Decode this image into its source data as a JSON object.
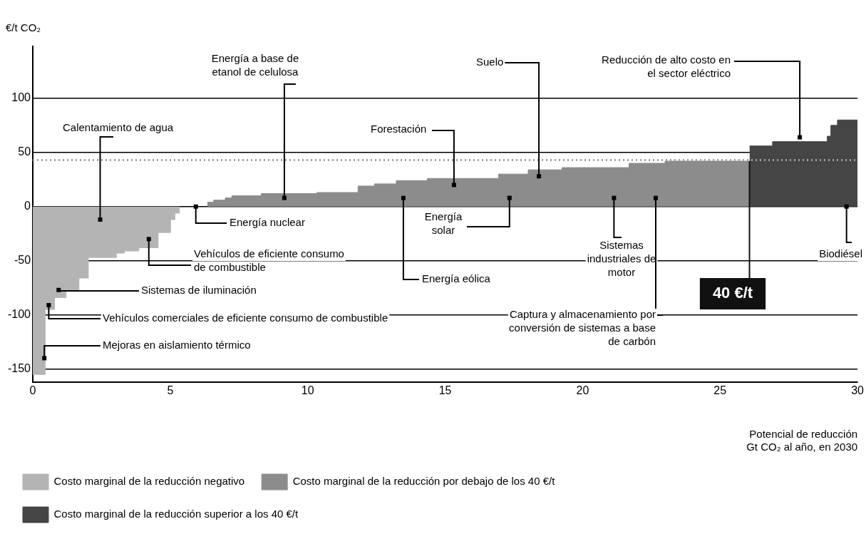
{
  "chart_data": {
    "type": "area",
    "ylabel": "€/t CO₂",
    "xlabel": "Potencial de reducción\nGt CO₂ al año, en 2030",
    "xlim": [
      0,
      30
    ],
    "xticks": [
      0,
      5,
      10,
      15,
      20,
      25,
      30
    ],
    "ylim": [
      -162,
      148
    ],
    "yticks": [
      -150,
      -100,
      -50,
      0,
      50,
      100
    ],
    "grid": "y",
    "legend": "bottom",
    "series": [
      {
        "name": "Costo marginal de la reducción negativo",
        "color": "#b4b4b4",
        "x": [
          0,
          0.45,
          0.45,
          0.79,
          0.79,
          1.21,
          1.21,
          1.68,
          1.68,
          2.02,
          2.02,
          3.04,
          3.04,
          3.33,
          3.33,
          3.86,
          3.86,
          4.56,
          4.56,
          5.01,
          5.01,
          5.17,
          5.17,
          5.35
        ],
        "values": [
          -155,
          -155,
          -95,
          -95,
          -84,
          -84,
          -77,
          -77,
          -66,
          -66,
          -47,
          -47,
          -43,
          -43,
          -41,
          -41,
          -38,
          -38,
          -24,
          -24,
          -12,
          -12,
          -6,
          -6
        ]
      },
      {
        "name": "Costo marginal de la reducción por debajo de los 40 €/t",
        "color": "#8c8c8c",
        "x": [
          6.35,
          6.58,
          6.58,
          7.0,
          7.0,
          7.24,
          7.24,
          8.31,
          8.31,
          10.33,
          10.33,
          11.83,
          11.83,
          12.43,
          12.43,
          13.22,
          13.22,
          14.35,
          14.35,
          16.94,
          16.94,
          18.02,
          18.02,
          19.25,
          19.25,
          21.69,
          21.69,
          23.0,
          23.0,
          26.07
        ],
        "values": [
          4,
          4,
          6,
          6,
          8,
          8,
          10,
          10,
          12,
          12,
          13,
          13,
          19,
          19,
          21,
          21,
          24,
          24,
          26,
          26,
          30,
          30,
          34,
          34,
          36,
          36,
          40,
          40,
          42,
          42
        ]
      },
      {
        "name": "Costo marginal de la reducción superior a los 40 €/t",
        "color": "#454545",
        "x": [
          26.07,
          26.91,
          26.91,
          28.9,
          28.9,
          29.03,
          29.03,
          29.27,
          29.27,
          30
        ],
        "values": [
          56,
          56,
          60,
          60,
          65,
          65,
          75,
          75,
          80,
          80
        ]
      }
    ],
    "ref_lines": [
      {
        "axis": "y",
        "value": 43,
        "color": "#a0a0a0",
        "line_style": "dotted"
      }
    ],
    "annotations": [
      {
        "text": "Calentamiento de agua",
        "x": 2.45,
        "y": -12
      },
      {
        "text": "Energía a base de etanol de celulosa",
        "x": 9.15,
        "y": 8
      },
      {
        "text": "Suelo",
        "x": 18.41,
        "y": 28
      },
      {
        "text": "Reducción de alto costo en el sector eléctrico",
        "x": 27.9,
        "y": 64
      },
      {
        "text": "Forestación",
        "x": 15.32,
        "y": 20
      },
      {
        "text": "Energía nuclear",
        "x": 5.93,
        "y": 0
      },
      {
        "text": "Energía solar",
        "x": 17.34,
        "y": 8
      },
      {
        "text": "Energía eólica",
        "x": 13.48,
        "y": 8
      },
      {
        "text": "Sistemas industriales de motor",
        "x": 21.14,
        "y": 8
      },
      {
        "text": "Vehículos de eficiente consumo de combustible",
        "x": 4.22,
        "y": -30
      },
      {
        "text": "Sistemas de iluminación",
        "x": 0.94,
        "y": -77
      },
      {
        "text": "Vehículos comerciales de eficiente consumo de combustible",
        "x": 0.58,
        "y": -91
      },
      {
        "text": "Mejoras en aislamiento térmico",
        "x": 0.42,
        "y": -140
      },
      {
        "text": "Captura y almacenamiento por conversión de sistemas a base de carbón",
        "x": 22.66,
        "y": 8
      },
      {
        "text": "Biodiésel",
        "x": 29.6,
        "y": 0
      },
      {
        "text": "40 €/t",
        "x": 26.07,
        "y": 42
      }
    ]
  }
}
